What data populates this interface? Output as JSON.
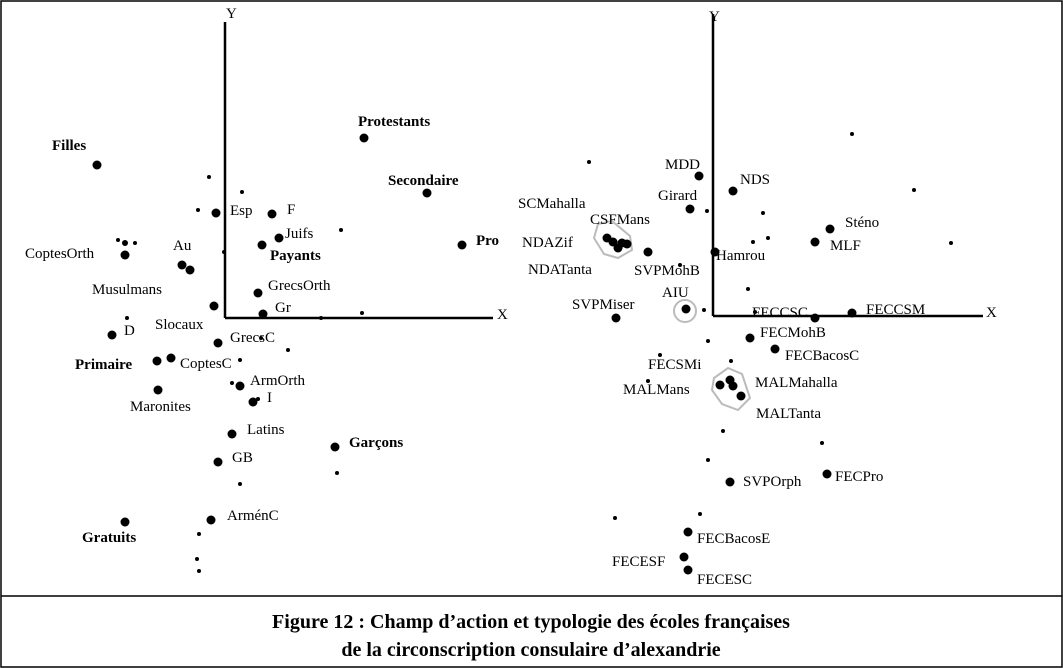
{
  "left_plot": {
    "y_axis": "Y",
    "x_axis": "X",
    "points": [
      "Filles",
      "Protestants",
      "Secondaire",
      "Pro",
      "Esp",
      "F",
      "Juifs",
      "Payants",
      "Au",
      "CoptesOrth",
      "Musulmans",
      "GrecsOrth",
      "Slocaux",
      "Gr",
      "D",
      "GrecsC",
      "Primaire",
      "CoptesC",
      "Maronites",
      "ArmOrth",
      "I",
      "Latins",
      "GB",
      "Garçons",
      "ArménC",
      "Gratuits"
    ]
  },
  "right_plot": {
    "y_axis": "Y",
    "x_axis": "X",
    "points": [
      "MDD",
      "NDS",
      "Girard",
      "SCMahalla",
      "CSFMans",
      "NDAZif",
      "NDATanta",
      "SVPMohB",
      "Hamrou",
      "Sténo",
      "MLF",
      "AIU",
      "SVPMiser",
      "FECCSC",
      "FECCSM",
      "FECMohB",
      "FECBacosC",
      "FECSMi",
      "MALMans",
      "MALMahalla",
      "MALTanta",
      "SVPOrph",
      "FECPro",
      "FECBacosE",
      "FECESF",
      "FECESC"
    ]
  },
  "caption": [
    "Figure 12 : Champ d’action et typologie des écoles françaises",
    "de la circonscription consulaire d’alexandrie"
  ]
}
